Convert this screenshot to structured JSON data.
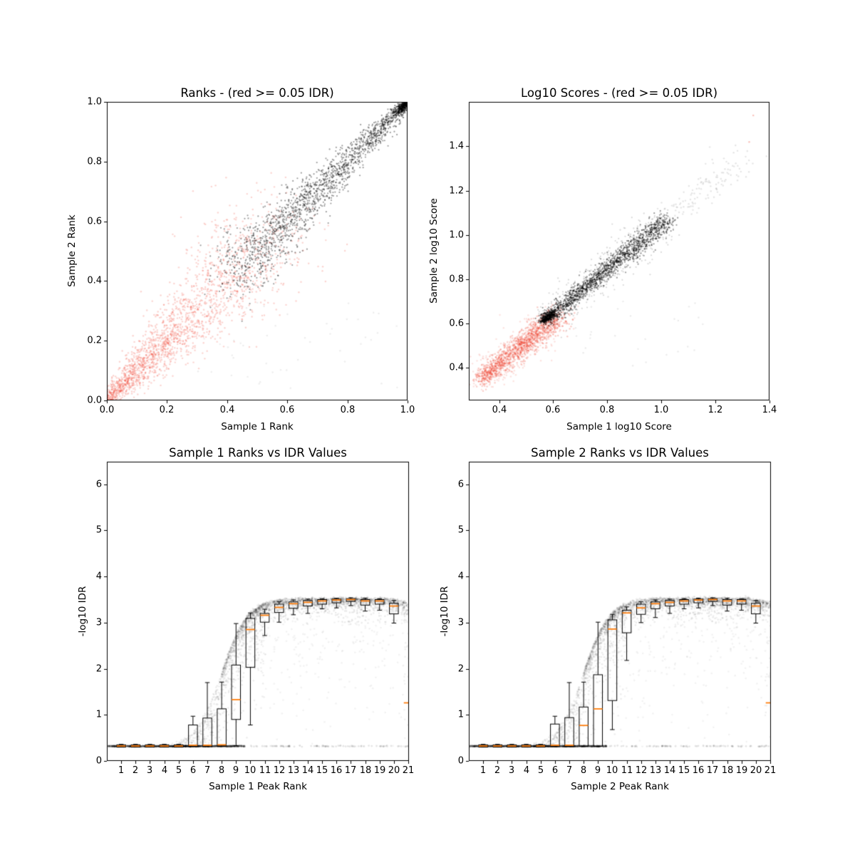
{
  "figure": {
    "background": "#ffffff",
    "frame_color": "#000000",
    "tick_color": "#000000"
  },
  "chart_data": [
    {
      "type": "scatter",
      "title": "Ranks - (red >= 0.05 IDR)",
      "xlabel": "Sample 1 Rank",
      "ylabel": "Sample 2 Rank",
      "xlim": [
        0,
        1
      ],
      "ylim": [
        0,
        1
      ],
      "xticks": {
        "values": [
          0,
          0.2,
          0.4,
          0.6,
          0.8,
          1.0
        ],
        "labels": [
          "0.0",
          "0.2",
          "0.4",
          "0.6",
          "0.8",
          "1.0"
        ]
      },
      "yticks": {
        "values": [
          0,
          0.2,
          0.4,
          0.6,
          0.8,
          1.0
        ],
        "labels": [
          "0.0",
          "0.2",
          "0.4",
          "0.6",
          "0.8",
          "1.0"
        ]
      },
      "legend_note": "red points = IDR >= 0.05 (irreproducible), dark points = IDR < 0.05 (reproducible)",
      "seed": 3,
      "series": [
        {
          "name": "irreproducible-red-cloud",
          "color": "#f03c28",
          "alpha": 0.22,
          "r": 1.2,
          "gen": {
            "kind": "diag",
            "n": 1500,
            "d0": 0.0,
            "d1": 0.56,
            "yoff": 0,
            "s0": 0.012,
            "s1": 0.1,
            "clampLo": 0.002
          }
        },
        {
          "name": "irreproducible-red-core",
          "color": "#f03c28",
          "alpha": 0.22,
          "r": 1.2,
          "gen": {
            "kind": "diag",
            "n": 500,
            "d0": 0.0,
            "d1": 0.3,
            "yoff": 0,
            "s0": 0.01,
            "s1": 0.05,
            "clampLo": 0.002
          }
        },
        {
          "name": "reproducible-black-band",
          "color": "#000000",
          "alpha": 0.38,
          "r": 1.1,
          "gen": {
            "kind": "diag",
            "n": 1700,
            "d0": 0.42,
            "d1": 0.995,
            "yoff": 0,
            "s0": 0.055,
            "s1": 0.008,
            "clampHi": 0.999
          }
        },
        {
          "name": "reproducible-corner-knot",
          "color": "#000000",
          "alpha": 0.5,
          "r": 1.1,
          "gen": {
            "kind": "diag",
            "n": 260,
            "d0": 0.965,
            "d1": 1.0,
            "yoff": 0,
            "s0": 0.012,
            "s1": 0.002,
            "clampHi": 0.999
          }
        },
        {
          "name": "faint-gray-outliers",
          "color": "#000000",
          "alpha": 0.07,
          "r": 1.2,
          "gen": {
            "kind": "uniform",
            "n": 45,
            "x0": 0.3,
            "x1": 1.0,
            "y0": 0.005,
            "y1": 0.33
          }
        }
      ]
    },
    {
      "type": "scatter",
      "title": "Log10 Scores - (red >= 0.05 IDR)",
      "xlabel": "Sample 1 log10 Score",
      "ylabel": "Sample 2 log10 Score",
      "xlim": [
        0.288,
        1.4
      ],
      "ylim": [
        0.253,
        1.601
      ],
      "xticks": {
        "values": [
          0.4,
          0.6,
          0.8,
          1.0,
          1.2,
          1.4
        ],
        "labels": [
          "0.4",
          "0.6",
          "0.8",
          "1.0",
          "1.2",
          "1.4"
        ]
      },
      "yticks": {
        "values": [
          0.4,
          0.6,
          0.8,
          1.0,
          1.2,
          1.4
        ],
        "labels": [
          "0.4",
          "0.6",
          "0.8",
          "1.0",
          "1.2",
          "1.4"
        ]
      },
      "legend_note": "red points = IDR >= 0.05 (irreproducible), dark points = IDR < 0.05 (reproducible)",
      "seed": 5,
      "series": [
        {
          "name": "irreproducible-red-core",
          "color": "#f03c28",
          "alpha": 0.25,
          "r": 1.2,
          "gen": {
            "kind": "diag",
            "n": 1200,
            "d0": 0.33,
            "d1": 0.62,
            "yoff": 0.015,
            "s0": 0.018,
            "s1": 0.028
          }
        },
        {
          "name": "irreproducible-red-halo",
          "color": "#f03c28",
          "alpha": 0.15,
          "r": 1.2,
          "gen": {
            "kind": "diag",
            "n": 400,
            "d0": 0.33,
            "d1": 0.6,
            "yoff": 0.015,
            "s0": 0.035,
            "s1": 0.045
          }
        },
        {
          "name": "reproducible-black-band",
          "color": "#000000",
          "alpha": 0.4,
          "r": 1.1,
          "gen": {
            "kind": "diag",
            "n": 1500,
            "d0": 0.565,
            "d1": 1.02,
            "yoff": 0.045,
            "s0": 0.015,
            "s1": 0.022
          }
        },
        {
          "name": "reproducible-black-halo",
          "color": "#000000",
          "alpha": 0.15,
          "r": 1.1,
          "gen": {
            "kind": "diag",
            "n": 450,
            "d0": 0.57,
            "d1": 1.0,
            "yoff": 0.045,
            "s0": 0.03,
            "s1": 0.05
          }
        },
        {
          "name": "band-start-knot",
          "color": "#000000",
          "alpha": 0.5,
          "r": 1.1,
          "gen": {
            "kind": "diag",
            "n": 250,
            "d0": 0.56,
            "d1": 0.6,
            "yoff": 0.05,
            "s0": 0.006,
            "s1": 0.01
          }
        },
        {
          "name": "gray-high-score-tail",
          "color": "#000000",
          "alpha": 0.1,
          "r": 1.2,
          "gen": {
            "kind": "diag",
            "n": 140,
            "d0": 1.0,
            "d1": 1.3,
            "yoff": 0.05,
            "s0": 0.02,
            "s1": 0.035
          }
        },
        {
          "name": "gray-below-diagonal-outliers",
          "color": "#000000",
          "alpha": 0.08,
          "r": 1.2,
          "gen": {
            "kind": "uniform",
            "n": 26,
            "x0": 0.68,
            "x1": 1.2,
            "y0": 0.38,
            "y1": 0.72
          }
        },
        {
          "name": "faint-red-outliers",
          "color": "#f03c28",
          "alpha": 0.3,
          "r": 1.3,
          "gen": {
            "kind": "points",
            "pts": [
              [
                1.34,
                1.54
              ],
              [
                1.325,
                1.42
              ]
            ]
          }
        }
      ]
    },
    {
      "type": "box",
      "title": "Sample 1 Ranks vs IDR Values",
      "xlabel": "Sample 1 Peak Rank",
      "ylabel": "-log10 IDR",
      "xlim": [
        0,
        21.05
      ],
      "ylim": [
        0,
        6.49
      ],
      "xticks": {
        "values": [
          1,
          2,
          3,
          4,
          5,
          6,
          7,
          8,
          9,
          10,
          11,
          12,
          13,
          14,
          15,
          16,
          17,
          18,
          19,
          20,
          21
        ],
        "labels": [
          "1",
          "2",
          "3",
          "4",
          "5",
          "6",
          "7",
          "8",
          "9",
          "10",
          "11",
          "12",
          "13",
          "14",
          "15",
          "16",
          "17",
          "18",
          "19",
          "20",
          "21"
        ]
      },
      "yticks": {
        "values": [
          0,
          1,
          2,
          3,
          4,
          5,
          6
        ],
        "labels": [
          "0",
          "1",
          "2",
          "3",
          "4",
          "5",
          "6"
        ]
      },
      "box_width": 0.62,
      "cap_width": 0.32,
      "box_color": "#000000",
      "median_color": "#ff7f0e",
      "sigmoid": {
        "floor": 0.32,
        "top": 3.53,
        "mid": 8.0,
        "width": 0.9,
        "dip_start": 19.5,
        "dip_rate": 0.06
      },
      "seed": 7,
      "boxes": [
        {
          "rank": 1,
          "lo": 0.31,
          "q1": 0.3,
          "med": 0.325,
          "q3": 0.35,
          "hi": 0.36
        },
        {
          "rank": 2,
          "lo": 0.31,
          "q1": 0.3,
          "med": 0.325,
          "q3": 0.35,
          "hi": 0.36
        },
        {
          "rank": 3,
          "lo": 0.31,
          "q1": 0.3,
          "med": 0.325,
          "q3": 0.35,
          "hi": 0.36
        },
        {
          "rank": 4,
          "lo": 0.31,
          "q1": 0.3,
          "med": 0.325,
          "q3": 0.35,
          "hi": 0.36
        },
        {
          "rank": 5,
          "lo": 0.31,
          "q1": 0.3,
          "med": 0.325,
          "q3": 0.35,
          "hi": 0.36
        },
        {
          "rank": 6,
          "lo": 0.32,
          "q1": 0.31,
          "med": 0.34,
          "q3": 0.78,
          "hi": 0.97
        },
        {
          "rank": 7,
          "lo": 0.32,
          "q1": 0.31,
          "med": 0.34,
          "q3": 0.93,
          "hi": 1.7
        },
        {
          "rank": 8,
          "lo": 0.32,
          "q1": 0.32,
          "med": 0.35,
          "q3": 1.13,
          "hi": 1.71
        },
        {
          "rank": 9,
          "lo": 0.33,
          "q1": 0.9,
          "med": 1.33,
          "q3": 2.08,
          "hi": 2.98
        },
        {
          "rank": 10,
          "lo": 0.78,
          "q1": 2.03,
          "med": 2.85,
          "q3": 3.09,
          "hi": 3.21
        },
        {
          "rank": 11,
          "lo": 2.72,
          "q1": 3.01,
          "med": 3.16,
          "q3": 3.2,
          "hi": 3.29
        },
        {
          "rank": 12,
          "lo": 3.01,
          "q1": 3.22,
          "med": 3.33,
          "q3": 3.4,
          "hi": 3.45
        },
        {
          "rank": 13,
          "lo": 3.17,
          "q1": 3.31,
          "med": 3.41,
          "q3": 3.45,
          "hi": 3.49
        },
        {
          "rank": 14,
          "lo": 3.2,
          "q1": 3.36,
          "med": 3.44,
          "q3": 3.48,
          "hi": 3.51
        },
        {
          "rank": 15,
          "lo": 3.3,
          "q1": 3.4,
          "med": 3.47,
          "q3": 3.5,
          "hi": 3.52
        },
        {
          "rank": 16,
          "lo": 3.32,
          "q1": 3.43,
          "med": 3.49,
          "q3": 3.51,
          "hi": 3.53
        },
        {
          "rank": 17,
          "lo": 3.37,
          "q1": 3.46,
          "med": 3.5,
          "q3": 3.52,
          "hi": 3.54
        },
        {
          "rank": 18,
          "lo": 3.25,
          "q1": 3.38,
          "med": 3.47,
          "q3": 3.5,
          "hi": 3.53
        },
        {
          "rank": 19,
          "lo": 3.27,
          "q1": 3.4,
          "med": 3.47,
          "q3": 3.5,
          "hi": 3.52
        },
        {
          "rank": 20,
          "lo": 2.99,
          "q1": 3.19,
          "med": 3.36,
          "q3": 3.42,
          "hi": 3.48
        },
        {
          "rank": 21,
          "med": 1.26
        }
      ],
      "scatter": [
        {
          "name": "idr-floor-dense",
          "color": "#000000",
          "alpha": 0.1,
          "r": 1.4,
          "gen": {
            "kind": "floor",
            "n": 1100,
            "x0": 0.05,
            "x1": 9.6,
            "y": 0.32,
            "jitter": 0.006
          }
        },
        {
          "name": "idr-floor-sparse",
          "color": "#000000",
          "alpha": 0.1,
          "r": 1.4,
          "gen": {
            "kind": "floor",
            "n": 85,
            "x0": 9.6,
            "x1": 21.0,
            "y": 0.32,
            "jitter": 0.006
          }
        },
        {
          "name": "transition-cloud",
          "color": "#000000",
          "alpha": 0.07,
          "r": 1.3,
          "gen": {
            "kind": "sigcloud",
            "n": 900,
            "x0": 4.5,
            "x1": 11.0,
            "tail": 0.5
          }
        },
        {
          "name": "plateau-cloud",
          "color": "#000000",
          "alpha": 0.08,
          "r": 1.3,
          "gen": {
            "kind": "sigcloud",
            "n": 1900,
            "x0": 8.0,
            "x1": 21.05,
            "tail": 0.1
          }
        },
        {
          "name": "plateau-haze",
          "color": "#000000",
          "alpha": 0.05,
          "r": 1.3,
          "gen": {
            "kind": "sigcloud",
            "n": 350,
            "x0": 10.0,
            "x1": 21.05,
            "tail": 0.9
          }
        },
        {
          "name": "right-edge-column",
          "color": "#000000",
          "alpha": 0.06,
          "r": 1.3,
          "gen": {
            "kind": "uniform",
            "n": 20,
            "x0": 20.6,
            "x1": 21.05,
            "y0": 0.9,
            "y1": 3.3
          }
        }
      ]
    },
    {
      "type": "box",
      "title": "Sample 2 Ranks vs IDR Values",
      "xlabel": "Sample 2 Peak Rank",
      "ylabel": "-log10 IDR",
      "xlim": [
        0,
        21.05
      ],
      "ylim": [
        0,
        6.49
      ],
      "xticks": {
        "values": [
          1,
          2,
          3,
          4,
          5,
          6,
          7,
          8,
          9,
          10,
          11,
          12,
          13,
          14,
          15,
          16,
          17,
          18,
          19,
          20,
          21
        ],
        "labels": [
          "1",
          "2",
          "3",
          "4",
          "5",
          "6",
          "7",
          "8",
          "9",
          "10",
          "11",
          "12",
          "13",
          "14",
          "15",
          "16",
          "17",
          "18",
          "19",
          "20",
          "21"
        ]
      },
      "yticks": {
        "values": [
          0,
          1,
          2,
          3,
          4,
          5,
          6
        ],
        "labels": [
          "0",
          "1",
          "2",
          "3",
          "4",
          "5",
          "6"
        ]
      },
      "box_width": 0.62,
      "cap_width": 0.32,
      "box_color": "#000000",
      "median_color": "#ff7f0e",
      "sigmoid": {
        "floor": 0.32,
        "top": 3.53,
        "mid": 8.0,
        "width": 0.9,
        "dip_start": 19.5,
        "dip_rate": 0.06
      },
      "seed": 9,
      "boxes": [
        {
          "rank": 1,
          "lo": 0.31,
          "q1": 0.3,
          "med": 0.325,
          "q3": 0.35,
          "hi": 0.36
        },
        {
          "rank": 2,
          "lo": 0.31,
          "q1": 0.3,
          "med": 0.325,
          "q3": 0.35,
          "hi": 0.36
        },
        {
          "rank": 3,
          "lo": 0.31,
          "q1": 0.3,
          "med": 0.325,
          "q3": 0.35,
          "hi": 0.36
        },
        {
          "rank": 4,
          "lo": 0.31,
          "q1": 0.3,
          "med": 0.325,
          "q3": 0.35,
          "hi": 0.36
        },
        {
          "rank": 5,
          "lo": 0.31,
          "q1": 0.3,
          "med": 0.325,
          "q3": 0.35,
          "hi": 0.36
        },
        {
          "rank": 6,
          "lo": 0.32,
          "q1": 0.31,
          "med": 0.34,
          "q3": 0.8,
          "hi": 0.97
        },
        {
          "rank": 7,
          "lo": 0.32,
          "q1": 0.31,
          "med": 0.34,
          "q3": 0.94,
          "hi": 1.7
        },
        {
          "rank": 8,
          "lo": 0.31,
          "q1": 0.32,
          "med": 0.77,
          "q3": 1.17,
          "hi": 1.71
        },
        {
          "rank": 9,
          "lo": 0.31,
          "q1": 0.32,
          "med": 1.13,
          "q3": 1.87,
          "hi": 3.01
        },
        {
          "rank": 10,
          "lo": 0.68,
          "q1": 1.31,
          "med": 2.86,
          "q3": 3.06,
          "hi": 3.18
        },
        {
          "rank": 11,
          "lo": 2.18,
          "q1": 2.78,
          "med": 3.21,
          "q3": 3.27,
          "hi": 3.34
        },
        {
          "rank": 12,
          "lo": 3.0,
          "q1": 3.18,
          "med": 3.32,
          "q3": 3.4,
          "hi": 3.45
        },
        {
          "rank": 13,
          "lo": 3.11,
          "q1": 3.3,
          "med": 3.41,
          "q3": 3.45,
          "hi": 3.49
        },
        {
          "rank": 14,
          "lo": 3.2,
          "q1": 3.36,
          "med": 3.44,
          "q3": 3.48,
          "hi": 3.51
        },
        {
          "rank": 15,
          "lo": 3.3,
          "q1": 3.4,
          "med": 3.47,
          "q3": 3.5,
          "hi": 3.52
        },
        {
          "rank": 16,
          "lo": 3.32,
          "q1": 3.43,
          "med": 3.49,
          "q3": 3.51,
          "hi": 3.53
        },
        {
          "rank": 17,
          "lo": 3.37,
          "q1": 3.46,
          "med": 3.5,
          "q3": 3.52,
          "hi": 3.54
        },
        {
          "rank": 18,
          "lo": 3.25,
          "q1": 3.38,
          "med": 3.47,
          "q3": 3.5,
          "hi": 3.53
        },
        {
          "rank": 19,
          "lo": 3.27,
          "q1": 3.4,
          "med": 3.47,
          "q3": 3.5,
          "hi": 3.52
        },
        {
          "rank": 20,
          "lo": 2.99,
          "q1": 3.19,
          "med": 3.36,
          "q3": 3.42,
          "hi": 3.48
        },
        {
          "rank": 21,
          "med": 1.26
        }
      ],
      "scatter": [
        {
          "name": "idr-floor-dense",
          "color": "#000000",
          "alpha": 0.1,
          "r": 1.4,
          "gen": {
            "kind": "floor",
            "n": 1100,
            "x0": 0.05,
            "x1": 9.6,
            "y": 0.32,
            "jitter": 0.006
          }
        },
        {
          "name": "idr-floor-sparse",
          "color": "#000000",
          "alpha": 0.1,
          "r": 1.4,
          "gen": {
            "kind": "floor",
            "n": 85,
            "x0": 9.6,
            "x1": 21.0,
            "y": 0.32,
            "jitter": 0.006
          }
        },
        {
          "name": "transition-cloud",
          "color": "#000000",
          "alpha": 0.07,
          "r": 1.3,
          "gen": {
            "kind": "sigcloud",
            "n": 900,
            "x0": 4.5,
            "x1": 11.0,
            "tail": 0.5
          }
        },
        {
          "name": "plateau-cloud",
          "color": "#000000",
          "alpha": 0.08,
          "r": 1.3,
          "gen": {
            "kind": "sigcloud",
            "n": 1900,
            "x0": 8.0,
            "x1": 21.05,
            "tail": 0.1
          }
        },
        {
          "name": "plateau-haze",
          "color": "#000000",
          "alpha": 0.05,
          "r": 1.3,
          "gen": {
            "kind": "sigcloud",
            "n": 350,
            "x0": 10.0,
            "x1": 21.05,
            "tail": 0.9
          }
        },
        {
          "name": "right-edge-column",
          "color": "#000000",
          "alpha": 0.06,
          "r": 1.3,
          "gen": {
            "kind": "uniform",
            "n": 20,
            "x0": 20.6,
            "x1": 21.05,
            "y0": 0.9,
            "y1": 3.3
          }
        }
      ]
    }
  ]
}
